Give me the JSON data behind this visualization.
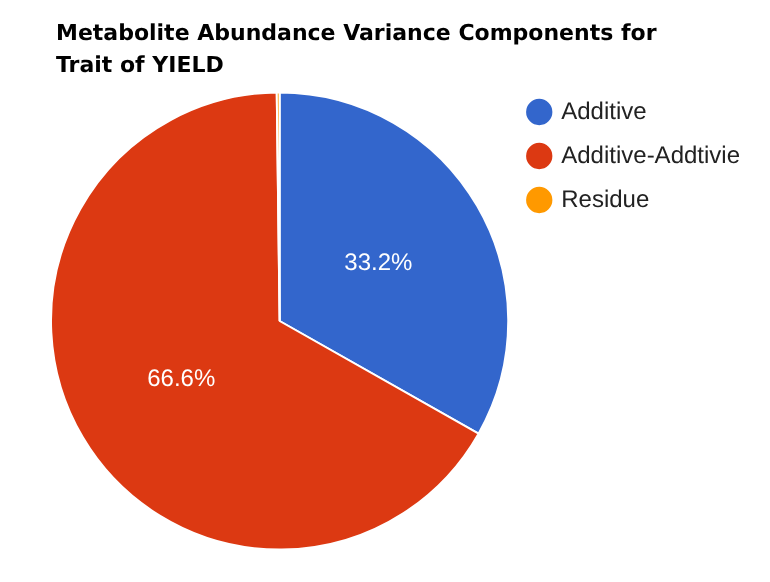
{
  "chart_data": {
    "type": "pie",
    "title": "Metabolite Abundance Variance Components  for Trait of YIELD",
    "categories": [
      "Additive",
      "Additive-Addtivie",
      "Residue"
    ],
    "values": [
      33.2,
      66.6,
      0.2
    ],
    "colors": [
      "#3366cc",
      "#dc3912",
      "#ff9900"
    ],
    "value_labels": [
      "33.2%",
      "66.6%",
      null
    ],
    "legend": "top right"
  }
}
